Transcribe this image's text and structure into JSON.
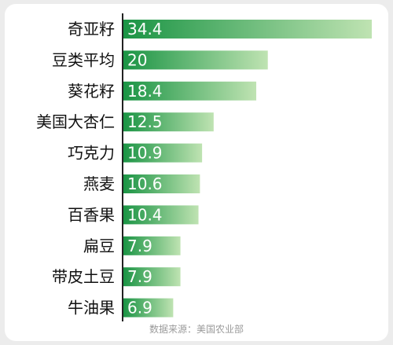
{
  "chart_data": {
    "type": "bar",
    "orientation": "horizontal",
    "title": "",
    "xlabel": "",
    "ylabel": "",
    "categories": [
      "奇亚籽",
      "豆类平均",
      "葵花籽",
      "美国大杏仁",
      "巧克力",
      "燕麦",
      "百香果",
      "扁豆",
      "带皮土豆",
      "牛油果"
    ],
    "values": [
      34.4,
      20,
      18.4,
      12.5,
      10.9,
      10.6,
      10.4,
      7.9,
      7.9,
      6.9
    ],
    "value_labels": [
      "34.4",
      "20",
      "18.4",
      "12.5",
      "10.9",
      "10.6",
      "10.4",
      "7.9",
      "7.9",
      "6.9"
    ],
    "xlim": [
      0,
      34.4
    ],
    "grid": false,
    "legend": "none",
    "colors": {
      "bar_dark": "#1a9444",
      "bar_light": "#bfe3b2",
      "axis": "#222222",
      "label": "#111111",
      "value_text": "#ffffff",
      "source": "#9a9a9a"
    }
  },
  "source_note": "数据来源：美国农业部"
}
